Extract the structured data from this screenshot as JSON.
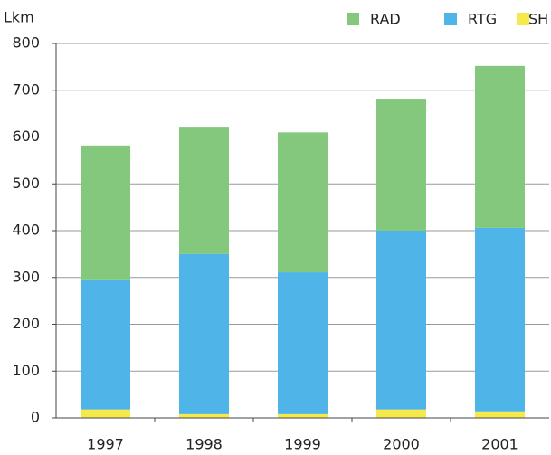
{
  "chart_data": {
    "type": "stacked_bar",
    "y_label": "Lkm",
    "categories": [
      "1997",
      "1998",
      "1999",
      "2000",
      "2001"
    ],
    "series": [
      {
        "name": "SH",
        "color": "#f5ea4a",
        "values": [
          18,
          8,
          8,
          18,
          14
        ]
      },
      {
        "name": "RTG",
        "color": "#4fb5e8",
        "values": [
          278,
          342,
          303,
          382,
          392
        ]
      },
      {
        "name": "RAD",
        "color": "#84c87e",
        "values": [
          286,
          272,
          299,
          282,
          346
        ]
      }
    ],
    "ylim": [
      0,
      800
    ],
    "yticks": [
      0,
      100,
      200,
      300,
      400,
      500,
      600,
      700,
      800
    ],
    "grid": true,
    "legend": "top-right"
  }
}
